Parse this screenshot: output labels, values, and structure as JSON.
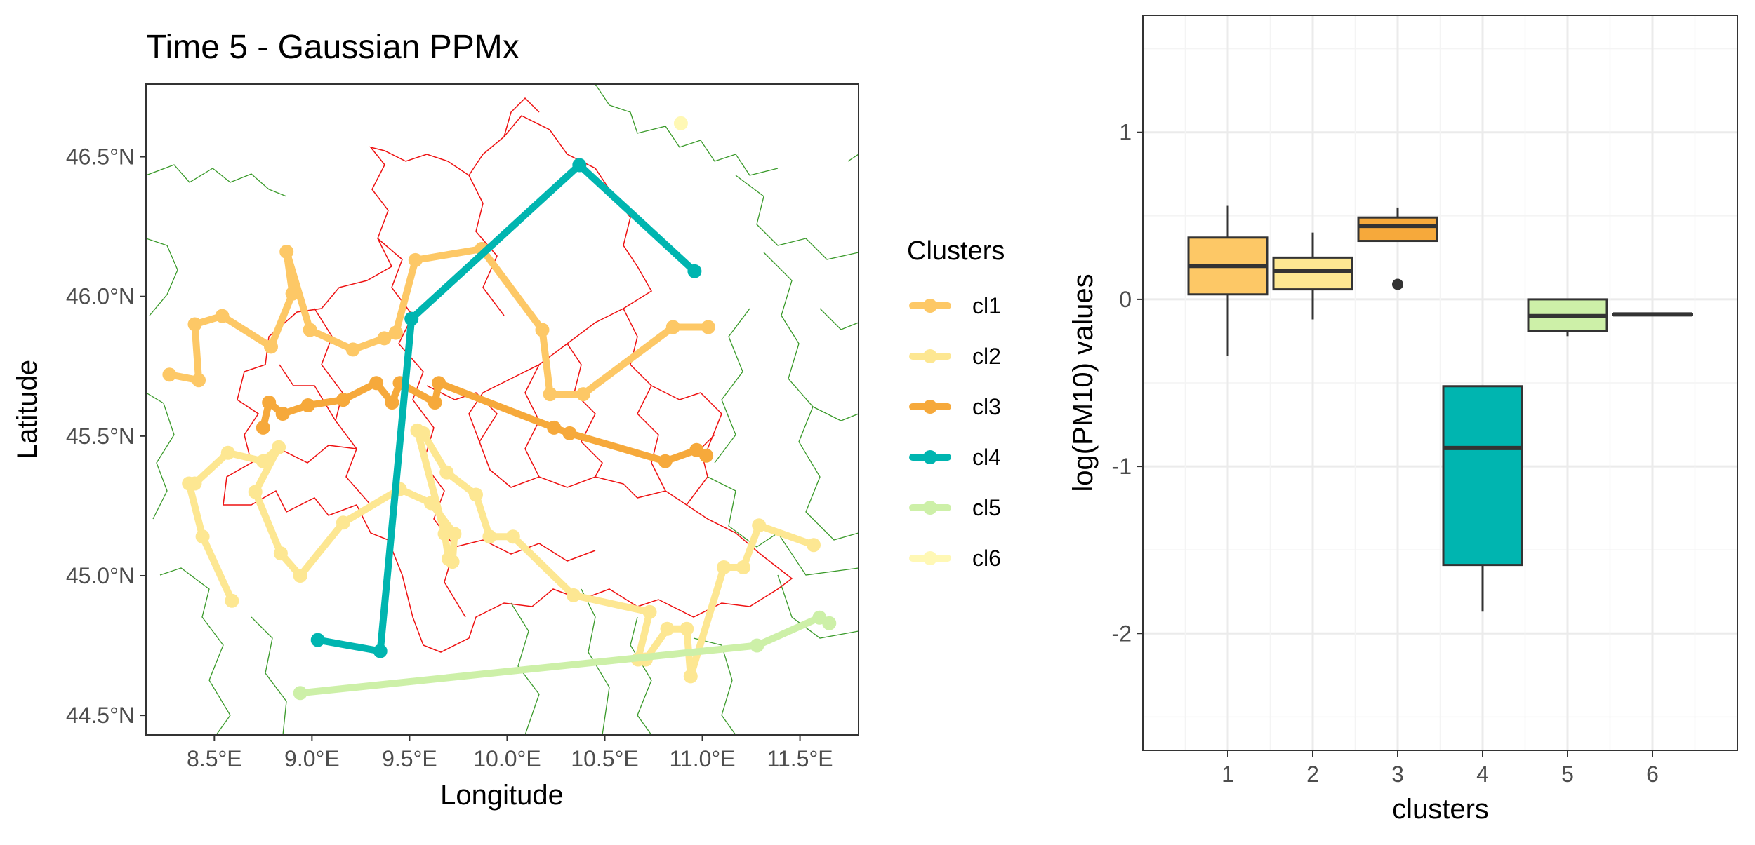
{
  "chart_data": [
    {
      "type": "scatter",
      "title": "Time 5 - Gaussian PPMx",
      "xlabel": "Longitude",
      "ylabel": "Latitude",
      "xlim": [
        8.15,
        11.8
      ],
      "ylim": [
        44.43,
        46.76
      ],
      "x_ticks": [
        8.5,
        9.0,
        9.5,
        10.0,
        10.5,
        11.0,
        11.5
      ],
      "x_tick_labels": [
        "8.5°E",
        "9.0°E",
        "9.5°E",
        "10.0°E",
        "10.5°E",
        "11.0°E",
        "11.5°E"
      ],
      "y_ticks": [
        44.5,
        45.0,
        45.5,
        46.0,
        46.5
      ],
      "y_tick_labels": [
        "44.5°N",
        "45.0°N",
        "45.5°N",
        "46.0°N",
        "46.5°N"
      ],
      "grid": false,
      "legend": {
        "title": "Clusters",
        "placement": "right",
        "entries": [
          {
            "name": "cl1",
            "color": "#FDC866"
          },
          {
            "name": "cl2",
            "color": "#FDE792"
          },
          {
            "name": "cl3",
            "color": "#F6A93B"
          },
          {
            "name": "cl4",
            "color": "#00B5B0"
          },
          {
            "name": "cl5",
            "color": "#CDF0A8"
          },
          {
            "name": "cl6",
            "color": "#FFF8B5"
          }
        ]
      },
      "series": [
        {
          "name": "cl1",
          "color": "#FDC866",
          "points": [
            [
              8.27,
              45.72
            ],
            [
              8.42,
              45.7
            ],
            [
              8.4,
              45.9
            ],
            [
              8.54,
              45.93
            ],
            [
              8.79,
              45.82
            ],
            [
              8.9,
              46.01
            ],
            [
              8.87,
              46.16
            ],
            [
              8.99,
              45.88
            ],
            [
              9.21,
              45.81
            ],
            [
              9.37,
              45.85
            ],
            [
              9.43,
              45.87
            ],
            [
              9.53,
              46.13
            ],
            [
              9.87,
              46.17
            ],
            [
              10.18,
              45.88
            ],
            [
              10.22,
              45.65
            ],
            [
              10.39,
              45.65
            ],
            [
              10.85,
              45.89
            ],
            [
              11.03,
              45.89
            ]
          ]
        },
        {
          "name": "cl2",
          "color": "#FDE792",
          "points": [
            [
              8.59,
              44.91
            ],
            [
              8.44,
              45.14
            ],
            [
              8.37,
              45.33
            ],
            [
              8.4,
              45.33
            ],
            [
              8.57,
              45.44
            ],
            [
              8.75,
              45.41
            ],
            [
              8.83,
              45.46
            ],
            [
              8.71,
              45.3
            ],
            [
              8.84,
              45.08
            ],
            [
              8.94,
              45.0
            ],
            [
              9.16,
              45.19
            ],
            [
              9.45,
              45.31
            ],
            [
              9.61,
              45.26
            ],
            [
              9.73,
              45.15
            ],
            [
              9.72,
              45.05
            ],
            [
              9.7,
              45.06
            ],
            [
              9.68,
              45.15
            ],
            [
              9.54,
              45.52
            ],
            [
              9.57,
              45.51
            ],
            [
              9.69,
              45.37
            ],
            [
              9.84,
              45.29
            ],
            [
              9.91,
              45.14
            ],
            [
              10.03,
              45.14
            ],
            [
              10.34,
              44.93
            ],
            [
              10.73,
              44.87
            ],
            [
              10.67,
              44.7
            ],
            [
              10.71,
              44.7
            ],
            [
              10.82,
              44.81
            ],
            [
              10.92,
              44.81
            ],
            [
              10.94,
              44.64
            ],
            [
              11.11,
              45.03
            ],
            [
              11.21,
              45.03
            ],
            [
              11.29,
              45.18
            ],
            [
              11.57,
              45.11
            ]
          ]
        },
        {
          "name": "cl3",
          "color": "#F6A93B",
          "points": [
            [
              8.75,
              45.53
            ],
            [
              8.78,
              45.62
            ],
            [
              8.85,
              45.58
            ],
            [
              8.98,
              45.61
            ],
            [
              9.16,
              45.63
            ],
            [
              9.33,
              45.69
            ],
            [
              9.41,
              45.62
            ],
            [
              9.45,
              45.69
            ],
            [
              9.63,
              45.62
            ],
            [
              9.65,
              45.69
            ],
            [
              10.24,
              45.53
            ],
            [
              10.32,
              45.51
            ],
            [
              10.81,
              45.41
            ],
            [
              10.97,
              45.45
            ],
            [
              11.02,
              45.43
            ]
          ]
        },
        {
          "name": "cl4",
          "color": "#00B5B0",
          "points": [
            [
              9.03,
              44.77
            ],
            [
              9.35,
              44.73
            ],
            [
              9.51,
              45.92
            ],
            [
              10.37,
              46.47
            ],
            [
              10.96,
              46.09
            ]
          ]
        },
        {
          "name": "cl5",
          "color": "#CDF0A8",
          "points": [
            [
              8.94,
              44.58
            ],
            [
              11.28,
              44.75
            ],
            [
              11.6,
              44.85
            ],
            [
              11.65,
              44.83
            ]
          ]
        },
        {
          "name": "cl6",
          "color": "#FFF8B5",
          "points": [
            [
              10.89,
              46.62
            ]
          ]
        }
      ]
    },
    {
      "type": "box",
      "title": "",
      "xlabel": "clusters",
      "ylabel": "log(PM10) values",
      "ylim": [
        -2.7,
        1.7
      ],
      "y_ticks": [
        -2,
        -1,
        0,
        1
      ],
      "y_tick_labels": [
        "-2",
        "-1",
        "0",
        "1"
      ],
      "categories": [
        "1",
        "2",
        "3",
        "4",
        "5",
        "6"
      ],
      "grid": true,
      "boxes": [
        {
          "category": "1",
          "color": "#FDC866",
          "whisker_low": -0.34,
          "q1": 0.03,
          "median": 0.2,
          "q3": 0.37,
          "whisker_high": 0.56,
          "outliers": []
        },
        {
          "category": "2",
          "color": "#FDE792",
          "whisker_low": -0.12,
          "q1": 0.06,
          "median": 0.17,
          "q3": 0.25,
          "whisker_high": 0.4,
          "outliers": []
        },
        {
          "category": "3",
          "color": "#F6A93B",
          "whisker_low": 0.35,
          "q1": 0.35,
          "median": 0.44,
          "q3": 0.49,
          "whisker_high": 0.55,
          "outliers": [
            0.09
          ]
        },
        {
          "category": "4",
          "color": "#00B5B0",
          "whisker_low": -1.87,
          "q1": -1.59,
          "median": -0.89,
          "q3": -0.52,
          "whisker_high": -0.52,
          "outliers": []
        },
        {
          "category": "5",
          "color": "#CDF0A8",
          "whisker_low": -0.22,
          "q1": -0.19,
          "median": -0.1,
          "q3": 0.0,
          "whisker_high": 0.0,
          "outliers": []
        },
        {
          "category": "6",
          "color": "#FFF8B5",
          "whisker_low": -0.09,
          "q1": -0.09,
          "median": -0.09,
          "q3": -0.09,
          "whisker_high": -0.09,
          "outliers": []
        }
      ]
    }
  ]
}
